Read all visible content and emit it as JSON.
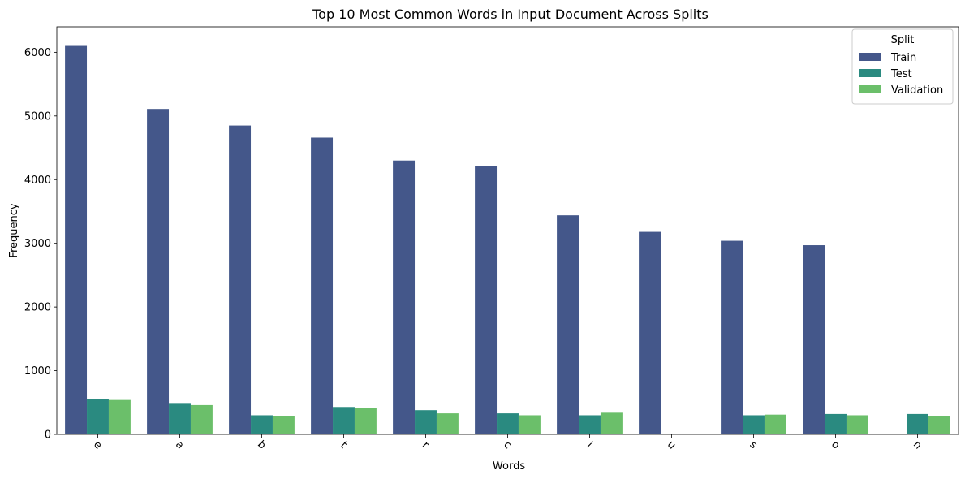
{
  "chart_data": {
    "type": "bar",
    "title": "Top 10 Most Common Words in Input Document Across Splits",
    "xlabel": "Words",
    "ylabel": "Frequency",
    "categories": [
      "e",
      "a",
      "b",
      "t",
      "r",
      "c",
      "i",
      "u",
      "s",
      "o",
      "n"
    ],
    "ylim": [
      0,
      6400
    ],
    "yticks": [
      0,
      1000,
      2000,
      3000,
      4000,
      5000,
      6000
    ],
    "legend": {
      "title": "Split",
      "placement": "top-right"
    },
    "series": [
      {
        "name": "Train",
        "color": "#44578a",
        "values": [
          6100,
          5110,
          4850,
          4660,
          4300,
          4210,
          3440,
          3180,
          3040,
          2970,
          0
        ]
      },
      {
        "name": "Test",
        "color": "#2a8a80",
        "values": [
          560,
          480,
          300,
          430,
          380,
          330,
          300,
          0,
          300,
          320,
          320
        ]
      },
      {
        "name": "Validation",
        "color": "#6bbf6a",
        "values": [
          540,
          460,
          290,
          410,
          330,
          300,
          340,
          0,
          310,
          300,
          290
        ]
      }
    ]
  }
}
